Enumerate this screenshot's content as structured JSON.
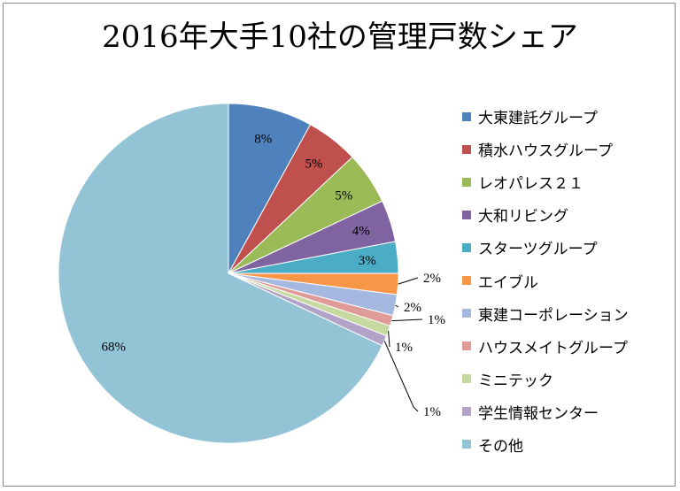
{
  "chart_data": {
    "type": "pie",
    "title": "2016年大手10社の管理戸数シェア",
    "legend_position": "right",
    "slices": [
      {
        "name": "大東建託グループ",
        "value": 8,
        "label": "8%",
        "color": "#4f81bd"
      },
      {
        "name": "積水ハウスグループ",
        "value": 5,
        "label": "5%",
        "color": "#c0504d"
      },
      {
        "name": "レオパレス２１",
        "value": 5,
        "label": "5%",
        "color": "#9bbb59"
      },
      {
        "name": "大和リビング",
        "value": 4,
        "label": "4%",
        "color": "#8064a2"
      },
      {
        "name": "スターツグループ",
        "value": 3,
        "label": "3%",
        "color": "#4bacc6"
      },
      {
        "name": "エイブル",
        "value": 2,
        "label": "2%",
        "color": "#f79646"
      },
      {
        "name": "東建コーポレーション",
        "value": 2,
        "label": "2%",
        "color": "#a5b9e0"
      },
      {
        "name": "ハウスメイトグループ",
        "value": 1,
        "label": "1%",
        "color": "#e09a98"
      },
      {
        "name": "ミニテック",
        "value": 1,
        "label": "1%",
        "color": "#c5d9a0"
      },
      {
        "name": "学生情報センター",
        "value": 1,
        "label": "1%",
        "color": "#b3a2c7"
      },
      {
        "name": "その他",
        "value": 68,
        "label": "68%",
        "color": "#93c4d6"
      }
    ]
  }
}
